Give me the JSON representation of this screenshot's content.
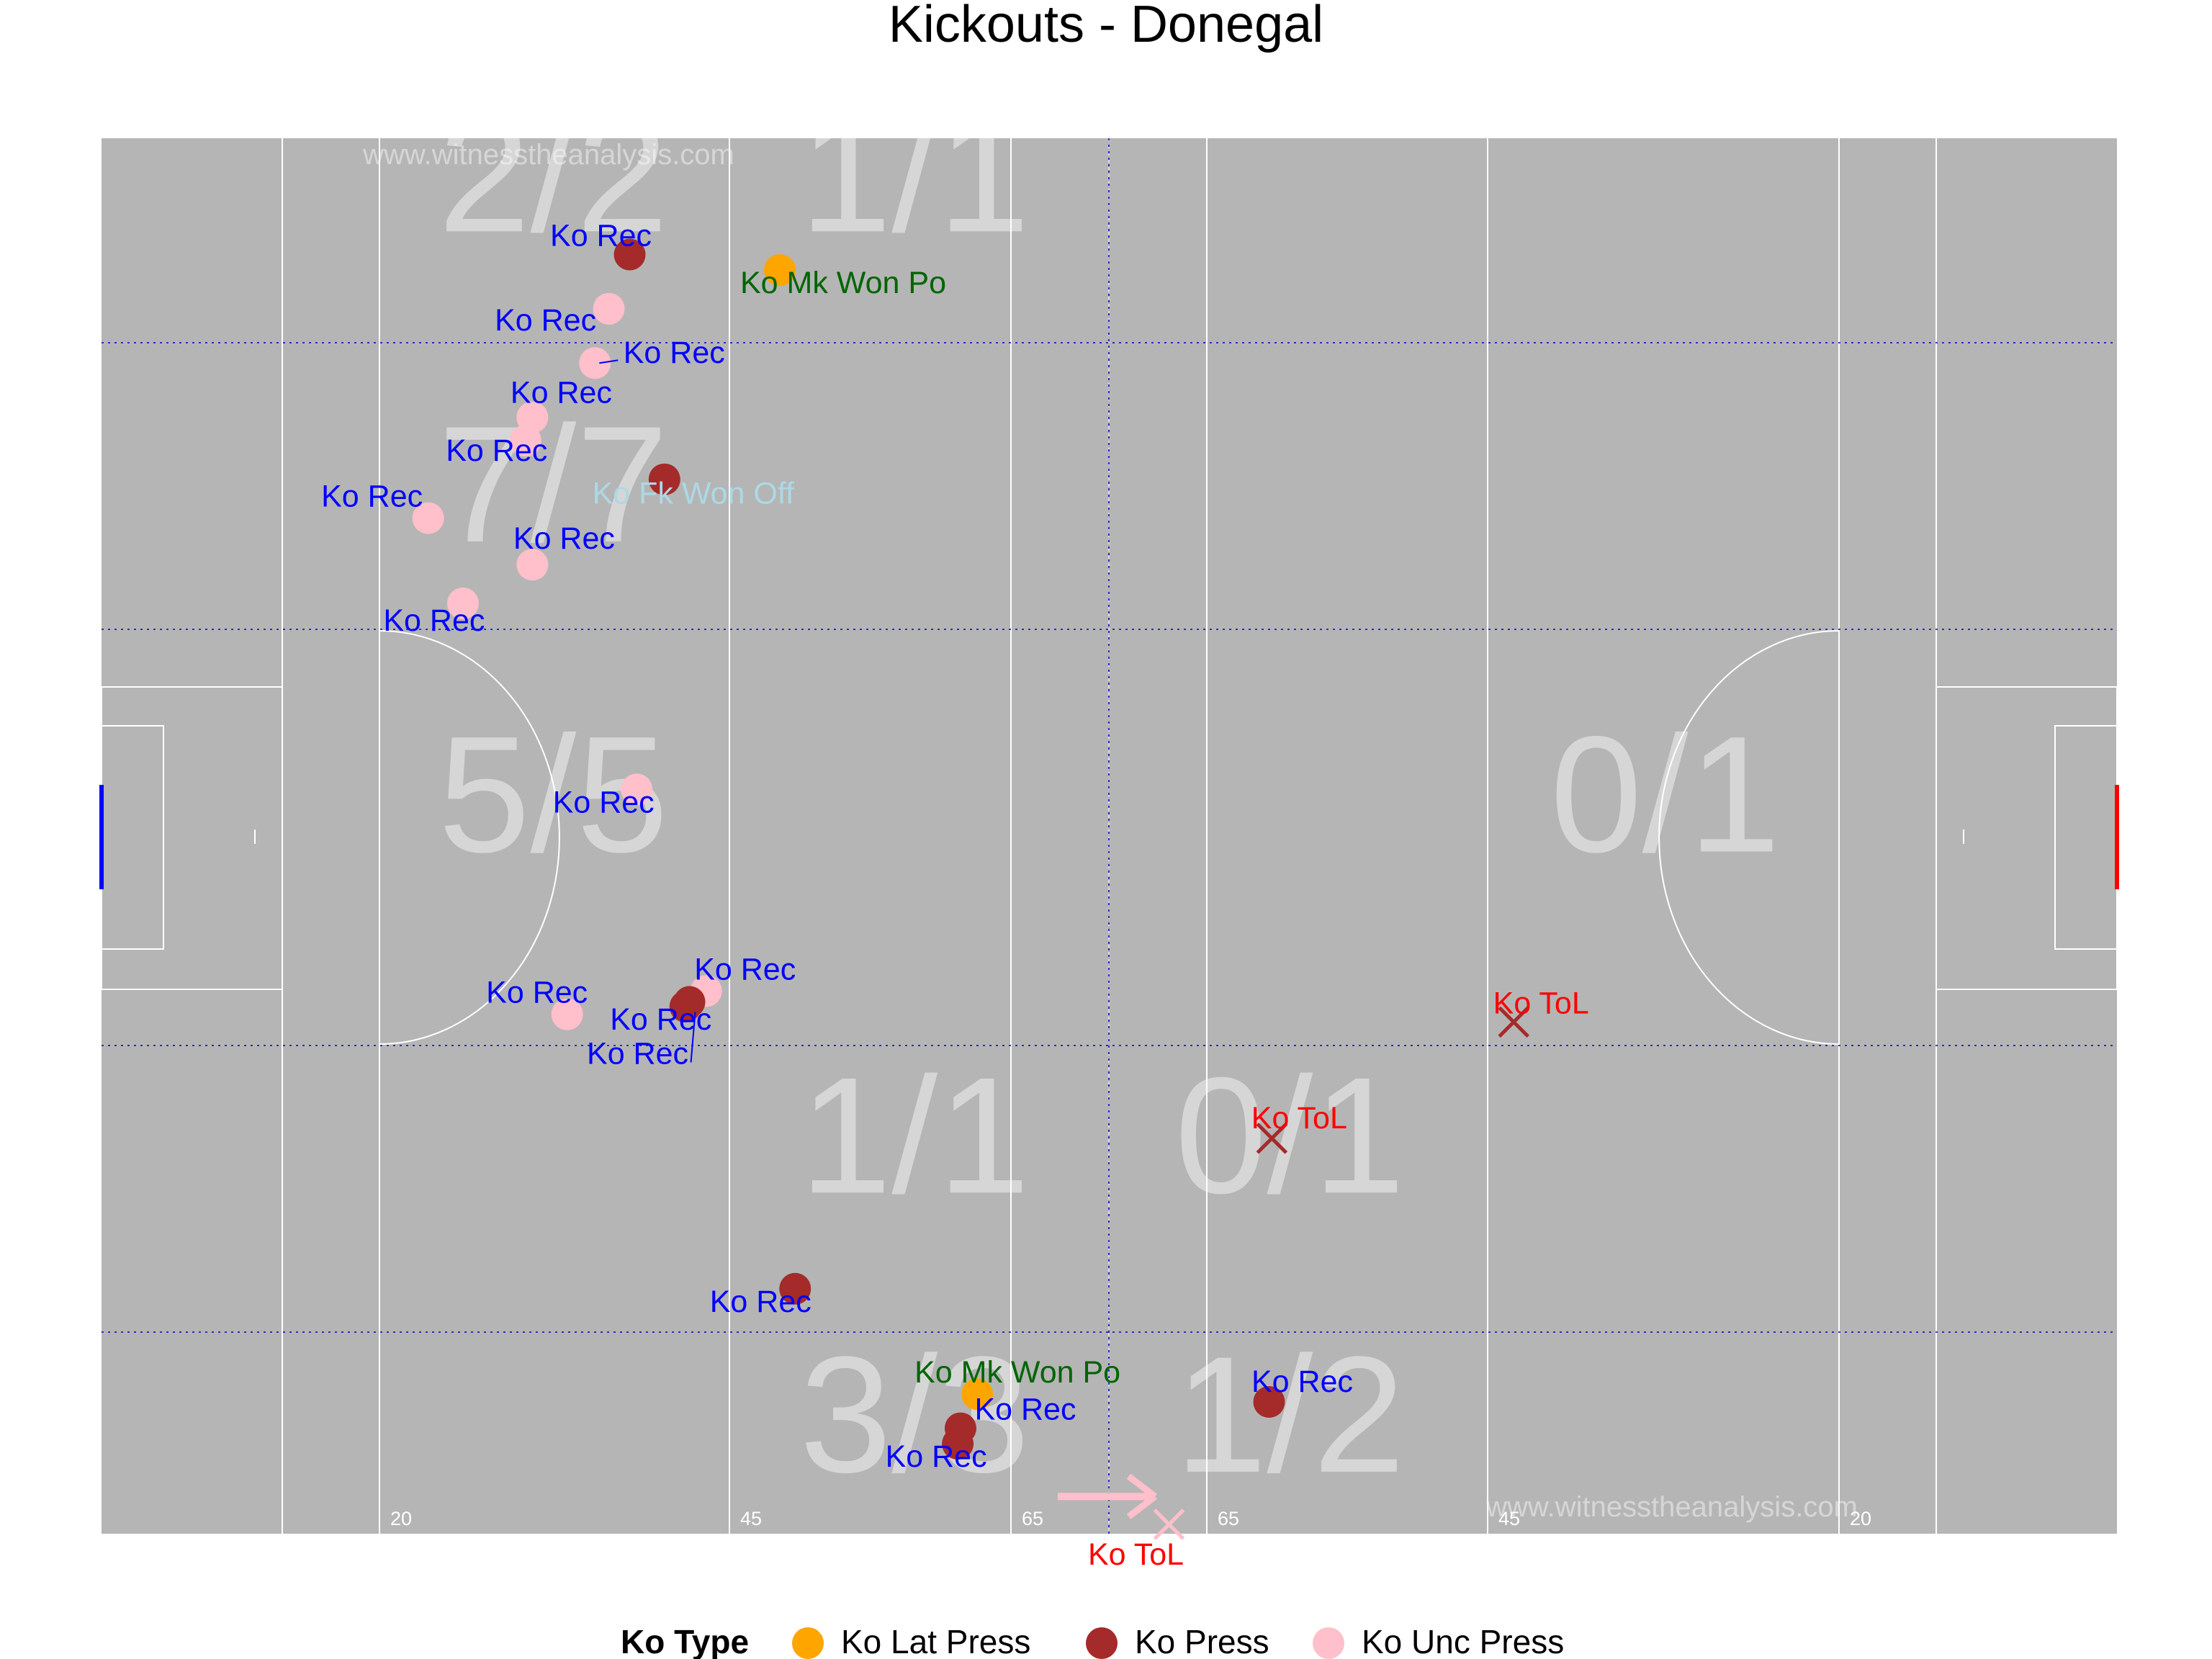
{
  "chart_data": {
    "type": "scatter",
    "title": "Kickouts - Donegal",
    "xlim": [
      0,
      145
    ],
    "ylim": [
      0,
      90
    ],
    "watermark": "www.witnesstheanalysis.com",
    "yard_labels": [
      "20",
      "45",
      "65",
      "65",
      "45",
      "20"
    ],
    "zones": [
      {
        "text": "2/2",
        "x": 32.5,
        "y": 84
      },
      {
        "text": "1/1",
        "x": 58.5,
        "y": 84
      },
      {
        "text": "7/7",
        "x": 32.5,
        "y": 64
      },
      {
        "text": "5/5",
        "x": 32.5,
        "y": 44
      },
      {
        "text": "0/1",
        "x": 112.5,
        "y": 44
      },
      {
        "text": "1/1",
        "x": 58.5,
        "y": 22
      },
      {
        "text": "0/1",
        "x": 85.5,
        "y": 22
      },
      {
        "text": "3/3",
        "x": 58.5,
        "y": 4
      },
      {
        "text": "1/2",
        "x": 85.5,
        "y": 4
      }
    ],
    "legend": {
      "title": "Ko Type",
      "items": [
        {
          "name": "Ko Lat Press",
          "color": "#FFA500"
        },
        {
          "name": "Ko Press",
          "color": "#A52A2A"
        },
        {
          "name": "Ko Unc Press",
          "color": "#FFC0CB"
        }
      ]
    },
    "label_colors": {
      "Ko Rec": "#0000FF",
      "Ko Mk Won Po": "#006400",
      "Ko Fk Won Off": "#ADD8E6",
      "Ko ToL": "#FF0000"
    },
    "points": [
      {
        "x": 38.0,
        "y": 82.5,
        "type": "Ko Press",
        "shape": "circle",
        "label": "Ko Rec"
      },
      {
        "x": 36.5,
        "y": 79.0,
        "type": "Ko Unc Press",
        "shape": "circle",
        "label": "Ko Rec"
      },
      {
        "x": 35.5,
        "y": 75.5,
        "type": "Ko Unc Press",
        "shape": "circle",
        "label": "Ko Rec"
      },
      {
        "x": 31.0,
        "y": 72.0,
        "type": "Ko Unc Press",
        "shape": "circle",
        "label": "Ko Rec"
      },
      {
        "x": 30.5,
        "y": 70.5,
        "type": "Ko Unc Press",
        "shape": "circle",
        "label": "Ko Rec"
      },
      {
        "x": 23.5,
        "y": 65.5,
        "type": "Ko Unc Press",
        "shape": "circle",
        "label": "Ko Rec"
      },
      {
        "x": 31.0,
        "y": 62.5,
        "type": "Ko Unc Press",
        "shape": "circle",
        "label": "Ko Rec"
      },
      {
        "x": 26.0,
        "y": 60.0,
        "type": "Ko Unc Press",
        "shape": "circle",
        "label": "Ko Rec"
      },
      {
        "x": 48.8,
        "y": 81.5,
        "type": "Ko Lat Press",
        "shape": "circle",
        "label": "Ko Mk Won Po"
      },
      {
        "x": 40.5,
        "y": 68.0,
        "type": "Ko Press",
        "shape": "circle",
        "label": "Ko Fk Won Off"
      },
      {
        "x": 38.5,
        "y": 48.0,
        "type": "Ko Unc Press",
        "shape": "circle",
        "label": "Ko Rec"
      },
      {
        "x": 43.5,
        "y": 35.0,
        "type": "Ko Unc Press",
        "shape": "circle",
        "label": "Ko Rec"
      },
      {
        "x": 33.5,
        "y": 33.5,
        "type": "Ko Unc Press",
        "shape": "circle",
        "label": "Ko Rec"
      },
      {
        "x": 42.0,
        "y": 34.0,
        "type": "Ko Press",
        "shape": "circle",
        "label": "Ko Rec"
      },
      {
        "x": 42.3,
        "y": 34.3,
        "type": "Ko Press",
        "shape": "circle",
        "label": "Ko Rec"
      },
      {
        "x": 49.9,
        "y": 15.8,
        "type": "Ko Press",
        "shape": "circle",
        "label": "Ko Rec"
      },
      {
        "x": 63.0,
        "y": 9.0,
        "type": "Ko Lat Press",
        "shape": "circle",
        "label": "Ko Mk Won Po"
      },
      {
        "x": 61.8,
        "y": 6.8,
        "type": "Ko Press",
        "shape": "circle",
        "label": "Ko Rec"
      },
      {
        "x": 61.6,
        "y": 5.8,
        "type": "Ko Press",
        "shape": "circle",
        "label": "Ko Rec"
      },
      {
        "x": 84.0,
        "y": 8.5,
        "type": "Ko Press",
        "shape": "circle",
        "label": "Ko Rec"
      },
      {
        "x": 84.2,
        "y": 25.5,
        "type": "Ko Press",
        "shape": "cross",
        "label": "Ko ToL"
      },
      {
        "x": 101.6,
        "y": 33.0,
        "type": "Ko Press",
        "shape": "cross",
        "label": "Ko ToL"
      },
      {
        "x": 76.8,
        "y": 0.6,
        "type": "Ko Unc Press",
        "shape": "cross",
        "label": "Ko ToL"
      }
    ]
  }
}
